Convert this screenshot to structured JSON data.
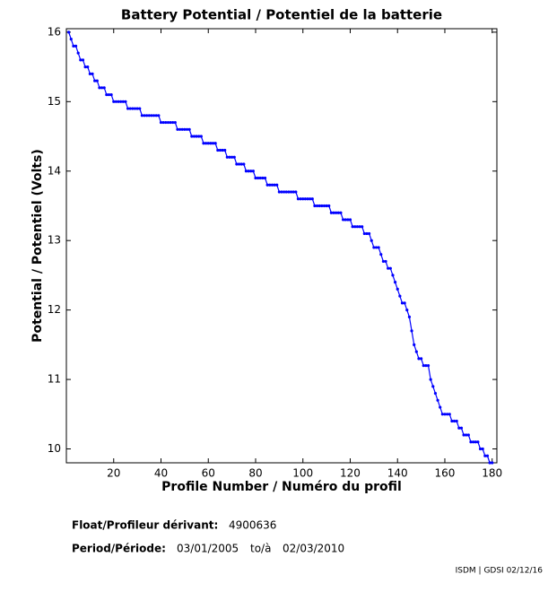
{
  "chart_data": {
    "type": "line",
    "title": "Battery Potential / Potentiel de la batterie",
    "xlabel": "Profile Number / Numéro du profil",
    "ylabel": "Potential / Potentiel (Volts)",
    "xlim": [
      0,
      182
    ],
    "ylim": [
      9.8,
      16.05
    ],
    "xticks": [
      20,
      40,
      60,
      80,
      100,
      120,
      140,
      160,
      180
    ],
    "yticks": [
      10,
      11,
      12,
      13,
      14,
      15,
      16
    ],
    "grid": false,
    "series": [
      {
        "color": "#0000ff",
        "x": [
          1,
          2,
          3,
          4,
          5,
          6,
          7,
          8,
          9,
          10,
          11,
          12,
          13,
          14,
          15,
          16,
          17,
          18,
          19,
          20,
          21,
          22,
          23,
          24,
          25,
          26,
          27,
          28,
          29,
          30,
          31,
          32,
          33,
          34,
          35,
          36,
          37,
          38,
          39,
          40,
          41,
          42,
          43,
          44,
          45,
          46,
          47,
          48,
          49,
          50,
          51,
          52,
          53,
          54,
          55,
          56,
          57,
          58,
          59,
          60,
          61,
          62,
          63,
          64,
          65,
          66,
          67,
          68,
          69,
          70,
          71,
          72,
          73,
          74,
          75,
          76,
          77,
          78,
          79,
          80,
          81,
          82,
          83,
          84,
          85,
          86,
          87,
          88,
          89,
          90,
          91,
          92,
          93,
          94,
          95,
          96,
          97,
          98,
          99,
          100,
          101,
          102,
          103,
          104,
          105,
          106,
          107,
          108,
          109,
          110,
          111,
          112,
          113,
          114,
          115,
          116,
          117,
          118,
          119,
          120,
          121,
          122,
          123,
          124,
          125,
          126,
          127,
          128,
          129,
          130,
          131,
          132,
          133,
          134,
          135,
          136,
          137,
          138,
          139,
          140,
          141,
          142,
          143,
          144,
          145,
          146,
          147,
          148,
          149,
          150,
          151,
          152,
          153,
          154,
          155,
          156,
          157,
          158,
          159,
          160,
          161,
          162,
          163,
          164,
          165,
          166,
          167,
          168,
          169,
          170,
          171,
          172,
          173,
          174,
          175,
          176,
          177,
          178,
          179,
          180
        ],
        "values": [
          16.0,
          15.9,
          15.8,
          15.8,
          15.7,
          15.6,
          15.6,
          15.5,
          15.5,
          15.4,
          15.4,
          15.3,
          15.3,
          15.2,
          15.2,
          15.2,
          15.1,
          15.1,
          15.1,
          15.0,
          15.0,
          15.0,
          15.0,
          15.0,
          15.0,
          14.9,
          14.9,
          14.9,
          14.9,
          14.9,
          14.9,
          14.8,
          14.8,
          14.8,
          14.8,
          14.8,
          14.8,
          14.8,
          14.8,
          14.7,
          14.7,
          14.7,
          14.7,
          14.7,
          14.7,
          14.7,
          14.6,
          14.6,
          14.6,
          14.6,
          14.6,
          14.6,
          14.5,
          14.5,
          14.5,
          14.5,
          14.5,
          14.4,
          14.4,
          14.4,
          14.4,
          14.4,
          14.4,
          14.3,
          14.3,
          14.3,
          14.3,
          14.2,
          14.2,
          14.2,
          14.2,
          14.1,
          14.1,
          14.1,
          14.1,
          14.0,
          14.0,
          14.0,
          14.0,
          13.9,
          13.9,
          13.9,
          13.9,
          13.9,
          13.8,
          13.8,
          13.8,
          13.8,
          13.8,
          13.7,
          13.7,
          13.7,
          13.7,
          13.7,
          13.7,
          13.7,
          13.7,
          13.6,
          13.6,
          13.6,
          13.6,
          13.6,
          13.6,
          13.6,
          13.5,
          13.5,
          13.5,
          13.5,
          13.5,
          13.5,
          13.5,
          13.4,
          13.4,
          13.4,
          13.4,
          13.4,
          13.3,
          13.3,
          13.3,
          13.3,
          13.2,
          13.2,
          13.2,
          13.2,
          13.2,
          13.1,
          13.1,
          13.1,
          13.0,
          12.9,
          12.9,
          12.9,
          12.8,
          12.7,
          12.7,
          12.6,
          12.6,
          12.5,
          12.4,
          12.3,
          12.2,
          12.1,
          12.1,
          12.0,
          11.9,
          11.7,
          11.5,
          11.4,
          11.3,
          11.3,
          11.2,
          11.2,
          11.2,
          11.0,
          10.9,
          10.8,
          10.7,
          10.6,
          10.5,
          10.5,
          10.5,
          10.5,
          10.4,
          10.4,
          10.4,
          10.3,
          10.3,
          10.2,
          10.2,
          10.2,
          10.1,
          10.1,
          10.1,
          10.1,
          10.0,
          10.0,
          9.9,
          9.9,
          9.8,
          9.8
        ]
      }
    ]
  },
  "info": {
    "float_label": "Float/Profileur dérivant:",
    "float_id": "4900636",
    "period_label": "Period/Période:",
    "start": "03/01/2005",
    "to": "to/à",
    "end": "02/03/2010",
    "credit": "ISDM | GDSI 02/12/16"
  }
}
